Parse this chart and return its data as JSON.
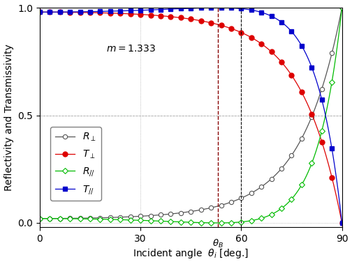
{
  "m": 1.333,
  "xlim": [
    0,
    90
  ],
  "ylim": [
    0.0,
    1.0
  ],
  "yticks": [
    0.0,
    0.5,
    1.0
  ],
  "xticks": [
    0,
    30,
    60,
    90
  ],
  "xlabel": "Incident angle  $\\theta_i$ [deg.]",
  "ylabel": "Reflectivity and Transmissivity",
  "annotation_text": "$m = 1.333$",
  "grid_color": "#aaaaaa",
  "bg_color": "#ffffff",
  "line_R_perp_color": "#555555",
  "line_T_perp_color": "#dd0000",
  "line_R_para_color": "#00bb00",
  "line_T_para_color": "#0000cc",
  "dashed_line_color": "#880000",
  "dashed_line2_color": "#000000",
  "label_fontsize": 10,
  "tick_fontsize": 10,
  "legend_fontsize": 10
}
